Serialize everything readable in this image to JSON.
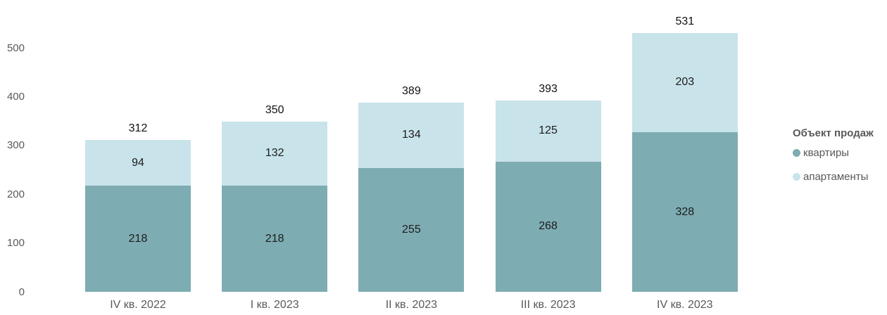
{
  "chart_data": {
    "type": "bar",
    "stacked": true,
    "title": "",
    "xlabel": "",
    "ylabel": "",
    "categories": [
      "IV кв. 2022",
      "I кв. 2023",
      "II кв. 2023",
      "III кв. 2023",
      "IV кв. 2023"
    ],
    "series": [
      {
        "name": "квартиры",
        "color": "#7dacb2",
        "values": [
          218,
          218,
          255,
          268,
          328
        ]
      },
      {
        "name": "апартаменты",
        "color": "#c9e3ea",
        "values": [
          94,
          132,
          134,
          125,
          203
        ]
      }
    ],
    "totals": [
      312,
      350,
      389,
      393,
      531
    ],
    "y_ticks": [
      0,
      100,
      200,
      300,
      400,
      500
    ],
    "ylim": [
      0,
      500
    ],
    "grid": false,
    "legend_title": "Объект продаж",
    "legend_position": "right"
  },
  "colors": {
    "axis_text": "#595959",
    "value_label_text": "#1c1c1c",
    "total_label_text": "#111111",
    "legend_text": "#595959",
    "background": "#ffffff"
  }
}
